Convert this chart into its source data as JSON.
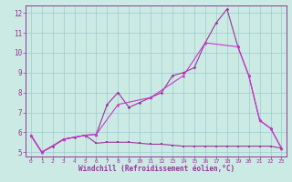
{
  "bg_color": "#cceae4",
  "grid_color": "#99cccc",
  "line_color1": "#993399",
  "line_color2": "#cc33cc",
  "xlabel": "Windchill (Refroidissement éolien,°C)",
  "xlim": [
    -0.5,
    23.5
  ],
  "ylim": [
    4.8,
    12.4
  ],
  "yticks": [
    5,
    6,
    7,
    8,
    9,
    10,
    11,
    12
  ],
  "xticks": [
    0,
    1,
    2,
    3,
    4,
    5,
    6,
    7,
    8,
    9,
    10,
    11,
    12,
    13,
    14,
    15,
    16,
    17,
    18,
    19,
    20,
    21,
    22,
    23
  ],
  "series_flat_x": [
    0,
    1,
    2,
    3,
    4,
    5,
    6,
    7,
    8,
    9,
    10,
    11,
    12,
    13,
    14,
    15,
    16,
    17,
    18,
    19,
    20,
    21,
    22,
    23
  ],
  "series_flat_y": [
    5.85,
    5.0,
    5.3,
    5.65,
    5.75,
    5.85,
    5.45,
    5.5,
    5.5,
    5.5,
    5.45,
    5.4,
    5.4,
    5.35,
    5.3,
    5.3,
    5.3,
    5.3,
    5.3,
    5.3,
    5.3,
    5.3,
    5.3,
    5.2
  ],
  "series_peak_x": [
    0,
    1,
    2,
    3,
    4,
    5,
    6,
    7,
    8,
    9,
    10,
    11,
    12,
    13,
    14,
    15,
    16,
    17,
    18,
    19,
    20,
    21,
    22,
    23
  ],
  "series_peak_y": [
    5.85,
    5.0,
    5.3,
    5.65,
    5.75,
    5.85,
    5.9,
    7.4,
    8.0,
    7.25,
    7.5,
    7.75,
    8.0,
    8.85,
    9.0,
    9.25,
    10.5,
    11.5,
    12.2,
    10.3,
    8.85,
    6.6,
    6.2,
    5.2
  ],
  "series_diag_x": [
    0,
    1,
    3,
    5,
    6,
    8,
    11,
    14,
    16,
    19,
    20,
    21,
    22,
    23
  ],
  "series_diag_y": [
    5.85,
    5.0,
    5.65,
    5.85,
    5.9,
    7.4,
    7.75,
    8.85,
    10.5,
    10.3,
    8.85,
    6.6,
    6.2,
    5.2
  ]
}
